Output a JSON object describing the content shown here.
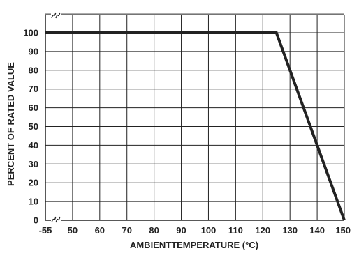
{
  "chart_data": {
    "type": "line",
    "xlabel": "AMBIENTTEMPERATURE (°C)",
    "ylabel": "PERCENT OF RATED VALUE",
    "x_ticks": [
      "-55",
      "50",
      "60",
      "70",
      "80",
      "90",
      "100",
      "110",
      "120",
      "130",
      "140",
      "150"
    ],
    "y_ticks": [
      "0",
      "10",
      "20",
      "30",
      "40",
      "50",
      "60",
      "70",
      "80",
      "90",
      "100"
    ],
    "xlim": [
      45,
      150
    ],
    "ylim": [
      0,
      110
    ],
    "x_axis_break": true,
    "y_axis_break": true,
    "grid": true,
    "series": [
      {
        "x": [
          -55,
          125,
          150
        ],
        "y": [
          100,
          100,
          0
        ]
      }
    ],
    "colors": {
      "grid": "#222222",
      "line": "#222222"
    }
  }
}
